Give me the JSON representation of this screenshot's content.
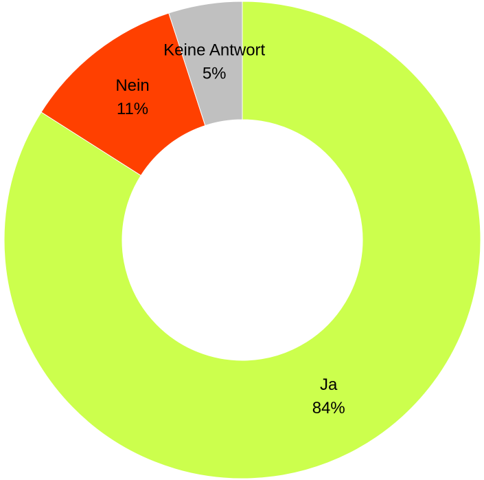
{
  "chart_data": {
    "type": "donut",
    "categories": [
      "Ja",
      "Nein",
      "Keine Antwort"
    ],
    "values": [
      84,
      11,
      5
    ],
    "value_labels": [
      "84%",
      "11%",
      "5%"
    ],
    "colors": [
      "#ccff4d",
      "#ff4000",
      "#c0c0c0"
    ]
  }
}
